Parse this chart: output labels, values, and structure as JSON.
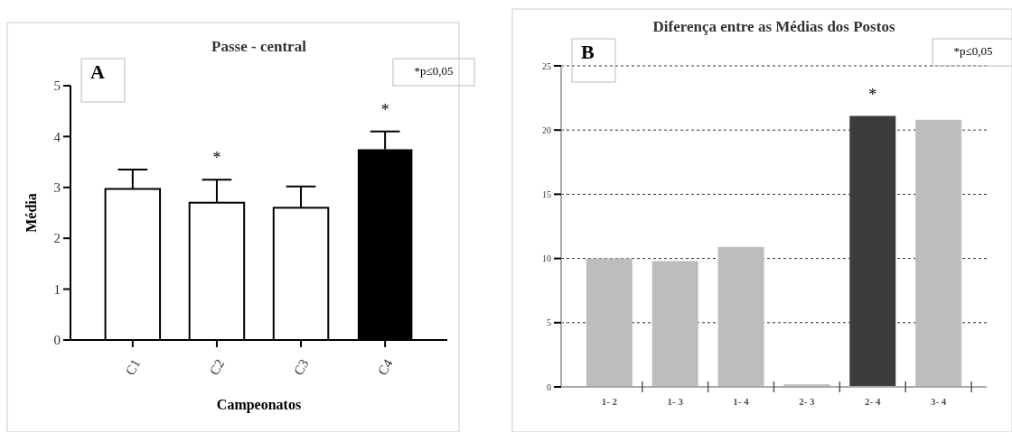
{
  "chart_data": [
    {
      "type": "bar",
      "title": "Passe - central",
      "xlabel": "Campeonatos",
      "ylabel": "Média",
      "categories": [
        "C1",
        "C2",
        "C3",
        "C4"
      ],
      "values": [
        2.97,
        2.7,
        2.6,
        3.75
      ],
      "colors": [
        "#ffffff",
        "#ffffff",
        "#ffffff",
        "#000000"
      ],
      "errors": [
        [
          2.97,
          3.35
        ],
        [
          2.7,
          3.15
        ],
        [
          2.6,
          3.02
        ],
        [
          3.75,
          4.1
        ]
      ],
      "ylim": [
        0,
        5
      ],
      "yticks": [
        0,
        1,
        2,
        3,
        4,
        5
      ],
      "grid": false,
      "annotations": [
        "A",
        "*p≤0,05",
        {
          "text": "*",
          "x": "C2",
          "y": 3.15
        },
        {
          "text": "*",
          "x": "C4",
          "y": 4.1
        }
      ]
    },
    {
      "type": "bar",
      "title": "Diferença entre as Médias dos Postos",
      "categories": [
        "1- 2",
        "1- 3",
        "1- 4",
        "2- 3",
        "2- 4",
        "3- 4"
      ],
      "values": [
        10,
        9.8,
        10.9,
        0.2,
        21.1,
        20.8
      ],
      "colors": [
        "#bdbdbd",
        "#bdbdbd",
        "#bdbdbd",
        "#bdbdbd",
        "#3c3c3c",
        "#bdbdbd"
      ],
      "ylim": [
        0,
        25
      ],
      "yticks": [
        0,
        5,
        10,
        15,
        20,
        25
      ],
      "grid": "y",
      "annotations": [
        "B",
        "*p≤0,05",
        {
          "text": "*",
          "x": "2- 4",
          "y": 21.1
        }
      ]
    }
  ]
}
